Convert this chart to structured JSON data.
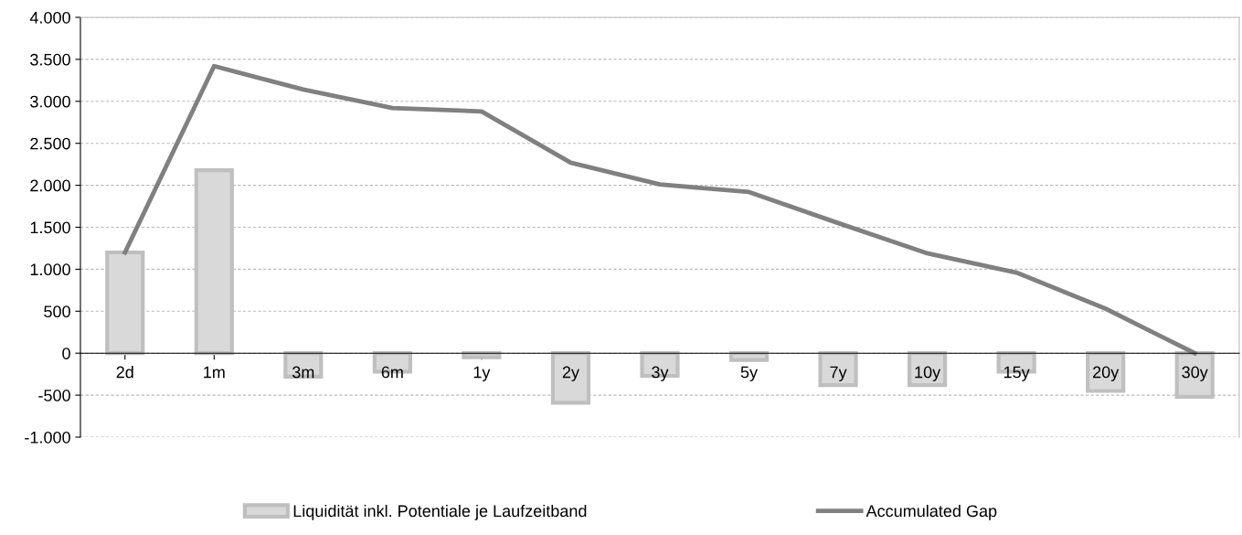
{
  "chart_data": {
    "type": "bar",
    "categories": [
      "2d",
      "1m",
      "3m",
      "6m",
      "1y",
      "2y",
      "3y",
      "5y",
      "7y",
      "10y",
      "15y",
      "20y",
      "30y"
    ],
    "series": [
      {
        "name": "Liquidität inkl. Potentiale je Laufzeitband",
        "color": "#d9d9d9",
        "values": [
          1200,
          2180,
          -280,
          -220,
          -50,
          -590,
          -270,
          -80,
          -380,
          -380,
          -220,
          -450,
          -520
        ]
      },
      {
        "name": "Accumulated Gap",
        "type": "line",
        "color": "#808080",
        "values": [
          1200,
          3420,
          3140,
          2920,
          2880,
          2270,
          2010,
          1920,
          1550,
          1190,
          960,
          530,
          0
        ]
      }
    ],
    "ylim": [
      -1000,
      4000
    ],
    "yticks": [
      {
        "value": -1000,
        "label": "-1.000"
      },
      -500,
      0,
      500,
      {
        "value": 1000,
        "label": "1.000"
      },
      {
        "value": 1500,
        "label": "1.500"
      },
      {
        "value": 2000,
        "label": "2.000"
      },
      {
        "value": 2500,
        "label": "2.500"
      },
      {
        "value": 3000,
        "label": "3.000"
      },
      {
        "value": 3500,
        "label": "3.500"
      },
      {
        "value": 4000,
        "label": "4.000"
      }
    ],
    "grid": "y",
    "legend": "bottom",
    "marker": "none",
    "line_style": "solid"
  }
}
